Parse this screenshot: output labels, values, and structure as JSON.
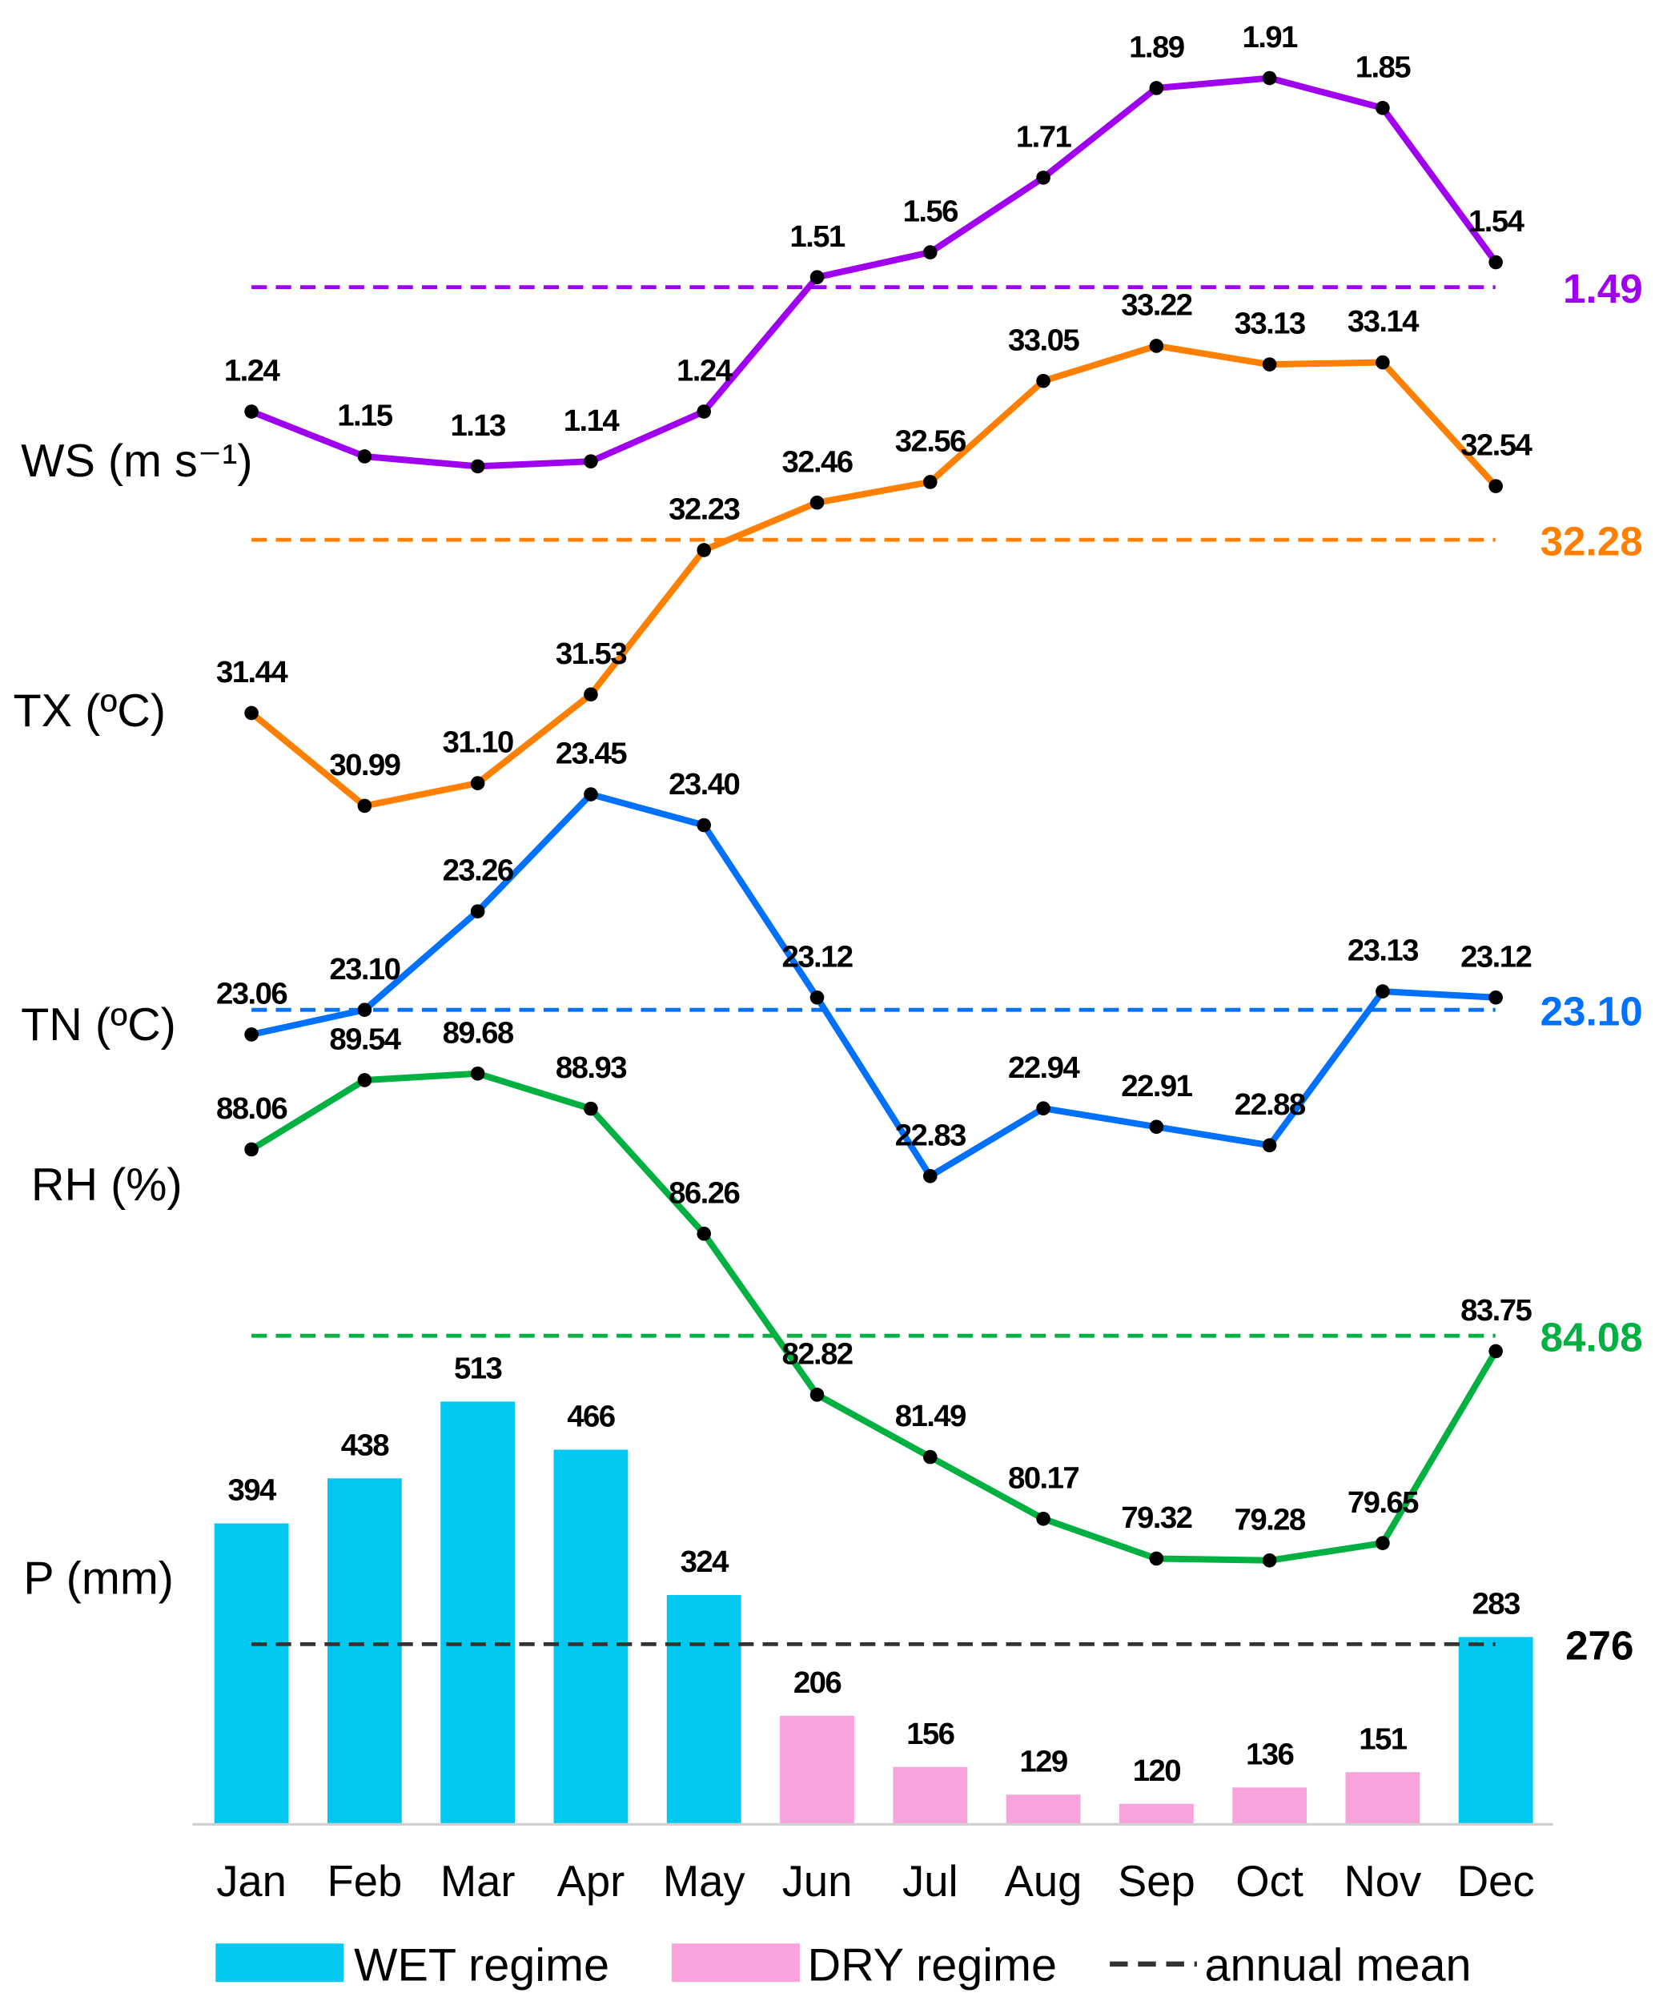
{
  "chart_data": {
    "type": "line",
    "categories": [
      "Jan",
      "Feb",
      "Mar",
      "Apr",
      "May",
      "Jun",
      "Jul",
      "Aug",
      "Sep",
      "Oct",
      "Nov",
      "Dec"
    ],
    "series": [
      {
        "key": "ws",
        "name": "WS (m s⁻¹)",
        "color": "#a000f0",
        "values": [
          1.24,
          1.15,
          1.13,
          1.14,
          1.24,
          1.51,
          1.56,
          1.71,
          1.89,
          1.91,
          1.85,
          1.54
        ],
        "labels": [
          "1.24",
          "1.15",
          "1.13",
          "1.14",
          "1.24",
          "1.51",
          "1.56",
          "1.71",
          "1.89",
          "1.91",
          "1.85",
          "1.54"
        ],
        "mean": 1.49,
        "mean_label": "1.49"
      },
      {
        "key": "tx",
        "name": "TX (ºC)",
        "color": "#ff8000",
        "values": [
          31.44,
          30.99,
          31.1,
          31.53,
          32.23,
          32.46,
          32.56,
          33.05,
          33.22,
          33.13,
          33.14,
          32.54
        ],
        "labels": [
          "31.44",
          "30.99",
          "31.10",
          "31.53",
          "32.23",
          "32.46",
          "32.56",
          "33.05",
          "33.22",
          "33.13",
          "33.14",
          "32.54"
        ],
        "mean": 32.28,
        "mean_label": "32.28"
      },
      {
        "key": "tn",
        "name": "TN (ºC)",
        "color": "#0070ff",
        "values": [
          23.06,
          23.1,
          23.26,
          23.45,
          23.4,
          23.12,
          22.83,
          22.94,
          22.91,
          22.88,
          23.13,
          23.12
        ],
        "labels": [
          "23.06",
          "23.10",
          "23.26",
          "23.45",
          "23.40",
          "23.12",
          "22.83",
          "22.94",
          "22.91",
          "22.88",
          "23.13",
          "23.12"
        ],
        "mean": 23.1,
        "mean_label": "23.10"
      },
      {
        "key": "rh",
        "name": "RH (%)",
        "color": "#00b040",
        "values": [
          88.06,
          89.54,
          89.68,
          88.93,
          86.26,
          82.82,
          81.49,
          80.17,
          79.32,
          79.28,
          79.65,
          83.75
        ],
        "labels": [
          "88.06",
          "89.54",
          "89.68",
          "88.93",
          "86.26",
          "82.82",
          "81.49",
          "80.17",
          "79.32",
          "79.28",
          "79.65",
          "83.75"
        ],
        "mean": 84.08,
        "mean_label": "84.08"
      }
    ],
    "bars": {
      "key": "p",
      "name": "P (mm)",
      "values": [
        394,
        438,
        513,
        466,
        324,
        206,
        156,
        129,
        120,
        136,
        151,
        283
      ],
      "labels": [
        "394",
        "438",
        "513",
        "466",
        "324",
        "206",
        "156",
        "129",
        "120",
        "136",
        "151",
        "283"
      ],
      "regime": [
        "wet",
        "wet",
        "wet",
        "wet",
        "wet",
        "dry",
        "dry",
        "dry",
        "dry",
        "dry",
        "dry",
        "wet"
      ],
      "mean": 276,
      "mean_label": "276",
      "ylim": [
        100,
        520
      ]
    },
    "colors": {
      "wet": "#00c8f0",
      "dry": "#f9a3dc",
      "mean_p": "#333333",
      "axis": "#d0d0d0"
    },
    "legend": {
      "wet": "WET regime",
      "dry": "DRY regime",
      "mean": "annual mean",
      "placement": "bottom"
    }
  }
}
